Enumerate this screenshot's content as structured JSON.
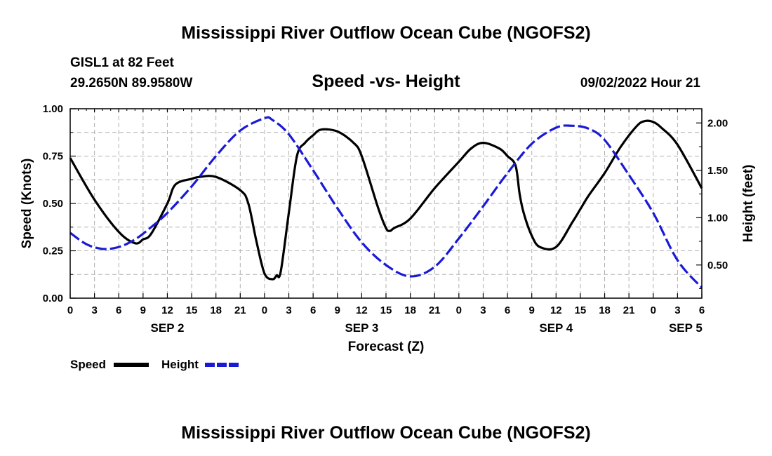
{
  "header": {
    "title": "Mississippi River Outflow Ocean Cube (NGOFS2)",
    "station": "GISL1 at 82 Feet",
    "coords": "29.2650N  89.9580W",
    "subtitle": "Speed -vs- Height",
    "datetime": "09/02/2022 Hour 21"
  },
  "footer": {
    "title": "Mississippi River Outflow Ocean Cube (NGOFS2)"
  },
  "legend": {
    "speed_label": "Speed",
    "height_label": "Height"
  },
  "colors": {
    "speed": "#000000",
    "height": "#1a1ad6",
    "grid": "#b0b0b0"
  },
  "chart_data": {
    "type": "line",
    "title": "Speed -vs- Height",
    "xlabel": "Forecast (Z)",
    "ylabel": "Speed (Knots)",
    "y2label": "Height (feet)",
    "xlim": [
      0,
      78
    ],
    "ylim": [
      0,
      1
    ],
    "y2lim": [
      0.15,
      2.15
    ],
    "x_tick_step": 3,
    "x_tick_labels": [
      "0",
      "3",
      "6",
      "9",
      "12",
      "15",
      "18",
      "21",
      "0",
      "3",
      "6",
      "9",
      "12",
      "15",
      "18",
      "21",
      "0",
      "3",
      "6",
      "9",
      "12",
      "15",
      "18",
      "21",
      "0",
      "3",
      "6"
    ],
    "y_ticks": [
      "0.00",
      "0.25",
      "0.50",
      "0.75",
      "1.00"
    ],
    "y2_ticks": [
      "0.50",
      "1.00",
      "1.50",
      "2.00"
    ],
    "day_labels": [
      {
        "label": "SEP 2",
        "x": 12
      },
      {
        "label": "SEP 3",
        "x": 36
      },
      {
        "label": "SEP 4",
        "x": 60
      },
      {
        "label": "SEP 5",
        "x": 76
      }
    ],
    "series": [
      {
        "name": "Speed",
        "axis": "left",
        "style": "solid",
        "x": [
          0,
          3,
          6,
          8,
          9,
          10,
          12,
          13,
          15,
          16,
          18,
          21,
          22,
          23,
          24,
          25,
          25.5,
          26,
          27,
          28,
          29,
          30,
          31,
          33,
          35,
          36,
          38,
          39,
          39.5,
          40,
          42,
          45,
          48,
          49.5,
          51,
          53,
          54,
          55,
          55.5,
          56,
          57,
          58,
          60,
          62,
          63,
          64,
          66,
          68,
          70,
          71,
          72,
          73,
          75,
          78
        ],
        "values": [
          0.74,
          0.52,
          0.35,
          0.29,
          0.31,
          0.34,
          0.5,
          0.6,
          0.63,
          0.64,
          0.64,
          0.57,
          0.5,
          0.3,
          0.13,
          0.1,
          0.12,
          0.14,
          0.45,
          0.75,
          0.82,
          0.86,
          0.89,
          0.88,
          0.82,
          0.75,
          0.48,
          0.37,
          0.355,
          0.37,
          0.42,
          0.58,
          0.72,
          0.79,
          0.82,
          0.79,
          0.75,
          0.7,
          0.55,
          0.45,
          0.33,
          0.27,
          0.27,
          0.4,
          0.47,
          0.54,
          0.66,
          0.8,
          0.91,
          0.935,
          0.93,
          0.9,
          0.81,
          0.58
        ]
      },
      {
        "name": "Height",
        "axis": "right",
        "style": "dashed",
        "x": [
          0,
          2,
          4,
          6,
          8,
          10,
          12,
          15,
          18,
          21,
          24,
          25,
          27,
          30,
          33,
          36,
          39,
          42,
          45,
          48,
          51,
          54,
          57,
          60,
          62,
          64,
          66,
          69,
          72,
          75,
          78
        ],
        "values": [
          0.84,
          0.72,
          0.67,
          0.69,
          0.77,
          0.9,
          1.05,
          1.33,
          1.65,
          1.92,
          2.05,
          2.03,
          1.88,
          1.5,
          1.1,
          0.74,
          0.5,
          0.38,
          0.48,
          0.78,
          1.12,
          1.47,
          1.78,
          1.95,
          1.97,
          1.94,
          1.82,
          1.45,
          1.05,
          0.55,
          0.26
        ]
      }
    ]
  }
}
